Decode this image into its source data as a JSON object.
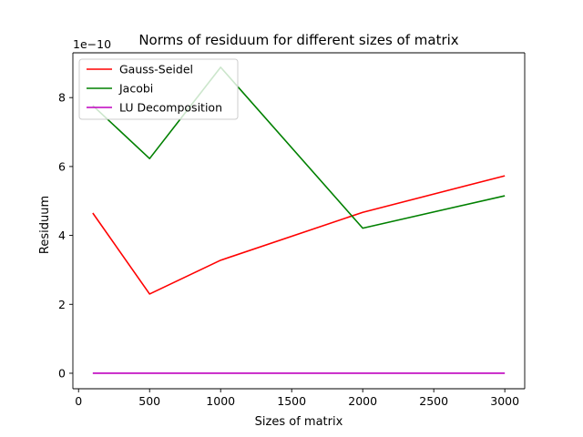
{
  "chart_data": {
    "type": "line",
    "title": "Norms of residuum for different sizes of matrix",
    "xlabel": "Sizes of matrix",
    "ylabel": "Residuum",
    "y_offset_label": "1e−10",
    "x": [
      100,
      500,
      1000,
      2000,
      3000
    ],
    "series": [
      {
        "name": "Gauss-Seidel",
        "color": "#ff0000",
        "values": [
          4.65e-10,
          2.3e-10,
          3.28e-10,
          4.67e-10,
          5.73e-10
        ]
      },
      {
        "name": "Jacobi",
        "color": "#008000",
        "values": [
          7.77e-10,
          6.23e-10,
          8.88e-10,
          4.21e-10,
          5.15e-10
        ]
      },
      {
        "name": "LU Decomposition",
        "color": "#bf00bf",
        "values": [
          0,
          0,
          0,
          0,
          0
        ]
      }
    ],
    "xlim": [
      -40,
      3140
    ],
    "ylim": [
      -4.5e-11,
      9.3e-10
    ],
    "x_ticks": [
      0,
      500,
      1000,
      1500,
      2000,
      2500,
      3000
    ],
    "x_tick_labels": [
      "0",
      "500",
      "1000",
      "1500",
      "2000",
      "2500",
      "3000"
    ],
    "y_ticks": [
      0,
      2e-10,
      4e-10,
      6e-10,
      8e-10
    ],
    "y_tick_labels": [
      "0",
      "2",
      "4",
      "6",
      "8"
    ],
    "legend_position": "top-left",
    "grid": false
  }
}
